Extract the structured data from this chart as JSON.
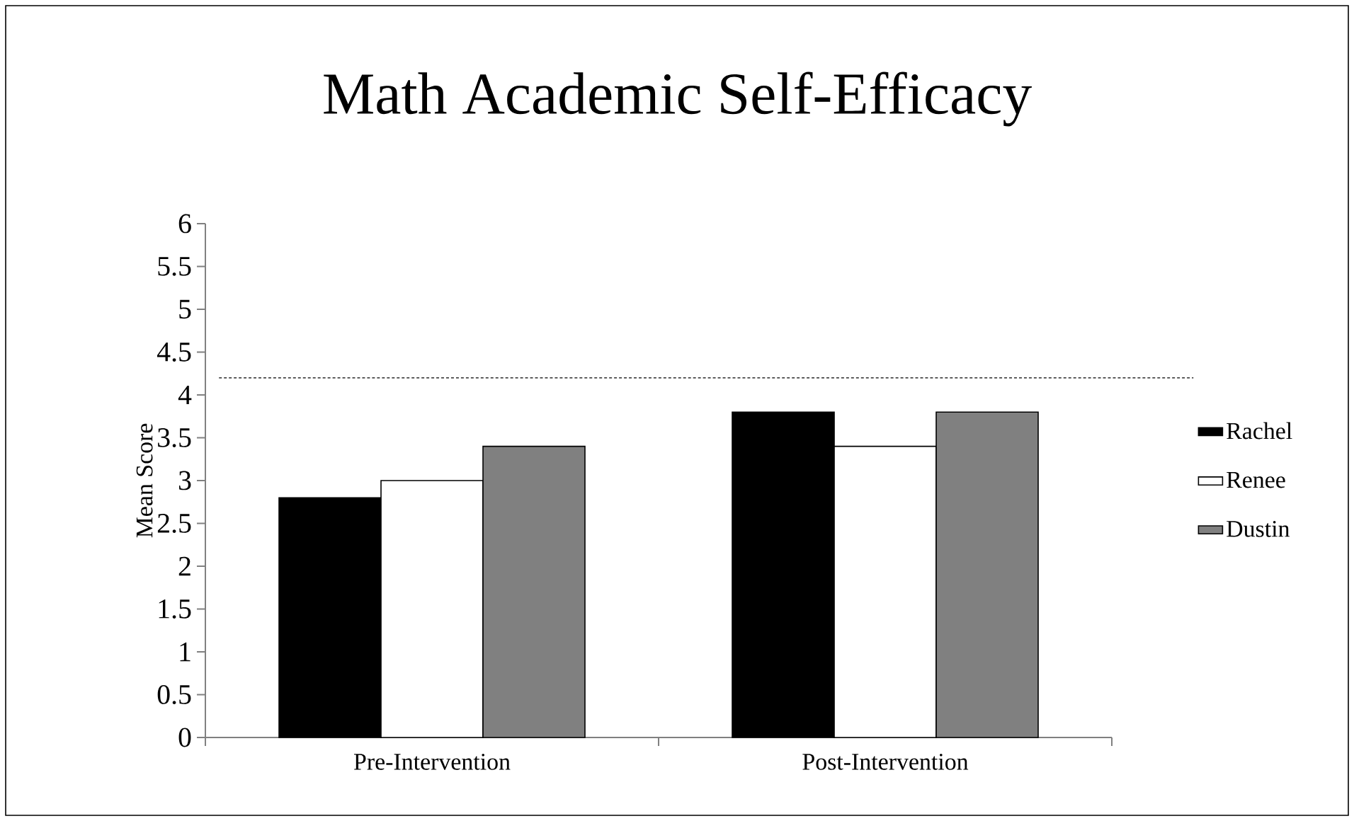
{
  "chart_data": {
    "type": "bar",
    "title": "Math Academic Self-Efficacy",
    "ylabel": "Mean Score",
    "categories": [
      "Pre-Intervention",
      "Post-Intervention"
    ],
    "series": [
      {
        "name": "Rachel",
        "color": "#000000",
        "values": [
          2.8,
          3.8
        ]
      },
      {
        "name": "Renee",
        "color": "#ffffff",
        "values": [
          3.0,
          3.4
        ]
      },
      {
        "name": "Dustin",
        "color": "#808080",
        "values": [
          3.4,
          3.8
        ]
      }
    ],
    "ylim": [
      0,
      6
    ],
    "yticks": [
      0,
      0.5,
      1,
      1.5,
      2,
      2.5,
      3,
      3.5,
      4,
      4.5,
      5,
      5.5,
      6
    ],
    "ref_lines": [
      {
        "axis": "y",
        "value": 4.2,
        "line_style": "dashed",
        "color": "#000000"
      }
    ],
    "grid": false,
    "legend": "right"
  }
}
